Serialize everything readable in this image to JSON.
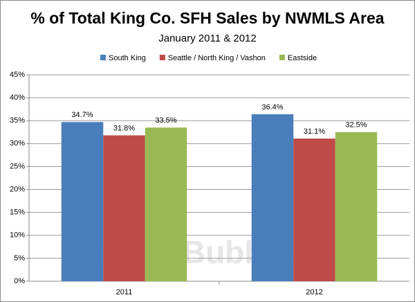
{
  "chart_data": {
    "type": "bar",
    "title": "% of Total King Co. SFH Sales by NWMLS Area",
    "subtitle": "January 2011 & 2012",
    "watermark": "SeattleBubble.com",
    "categories": [
      "2011",
      "2012"
    ],
    "series": [
      {
        "name": "South King",
        "color": "#4a7ebb",
        "values": [
          34.7,
          36.4
        ],
        "value_labels": [
          "34.7%",
          "36.4%"
        ]
      },
      {
        "name": "Seattle / North King / Vashon",
        "color": "#be4b48",
        "values": [
          31.8,
          31.1
        ],
        "value_labels": [
          "31.8%",
          "31.1%"
        ]
      },
      {
        "name": "Eastside",
        "color": "#98b954",
        "values": [
          33.5,
          32.5
        ],
        "value_labels": [
          "33.5%",
          "32.5%"
        ]
      }
    ],
    "ylim": [
      0,
      45
    ],
    "yticks": [
      {
        "value": 0,
        "label": "0%"
      },
      {
        "value": 5,
        "label": "5%"
      },
      {
        "value": 10,
        "label": "10%"
      },
      {
        "value": 15,
        "label": "15%"
      },
      {
        "value": 20,
        "label": "20%"
      },
      {
        "value": 25,
        "label": "25%"
      },
      {
        "value": 30,
        "label": "30%"
      },
      {
        "value": 35,
        "label": "35%"
      },
      {
        "value": 40,
        "label": "40%"
      },
      {
        "value": 45,
        "label": "45%"
      }
    ],
    "grid": true,
    "legend": "top"
  }
}
